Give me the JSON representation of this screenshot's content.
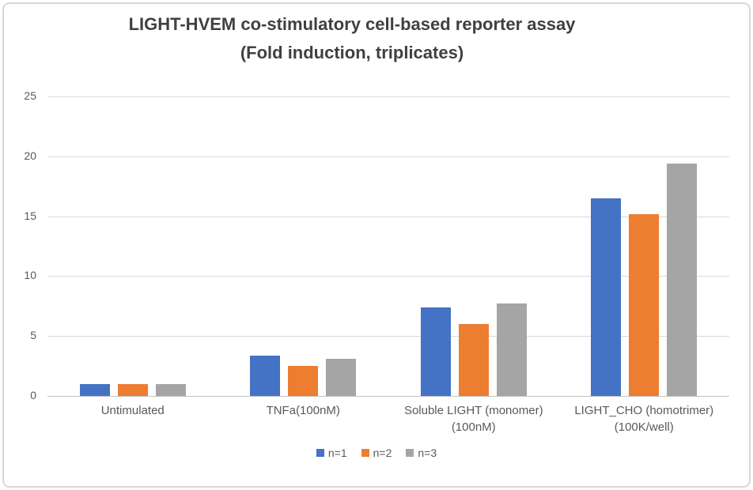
{
  "chart_data": {
    "type": "bar",
    "title": "LIGHT-HVEM co-stimulatory cell-based reporter assay",
    "subtitle": "(Fold induction, triplicates)",
    "categories": [
      "Untimulated",
      "TNFa(100nM)",
      "Soluble LIGHT (monomer) (100nM)",
      "LIGHT_CHO (homotrimer) (100K/well)"
    ],
    "category_lines": [
      [
        "Untimulated"
      ],
      [
        "TNFa(100nM)"
      ],
      [
        "Soluble LIGHT (monomer)",
        "(100nM)"
      ],
      [
        "LIGHT_CHO (homotrimer)",
        "(100K/well)"
      ]
    ],
    "series": [
      {
        "name": "n=1",
        "color": "#4472C4",
        "values": [
          1.0,
          3.4,
          7.4,
          16.5
        ]
      },
      {
        "name": "n=2",
        "color": "#ED7D31",
        "values": [
          1.0,
          2.5,
          6.0,
          15.2
        ]
      },
      {
        "name": "n=3",
        "color": "#A5A5A5",
        "values": [
          1.0,
          3.1,
          7.7,
          19.4
        ]
      }
    ],
    "ylabel": "",
    "xlabel": "",
    "ylim": [
      0,
      25
    ],
    "y_axis": {
      "min": 0,
      "max": 25,
      "step": 5,
      "ticks": [
        0,
        5,
        10,
        15,
        20,
        25
      ]
    },
    "grid": true,
    "legend_position": "bottom"
  },
  "colors": {
    "title_text": "#404040",
    "axis_text": "#595959",
    "gridline": "#D9D9D9",
    "axis_line": "#C3C3C3",
    "chart_border": "#D7D7D7",
    "background": "#FFFFFF"
  }
}
